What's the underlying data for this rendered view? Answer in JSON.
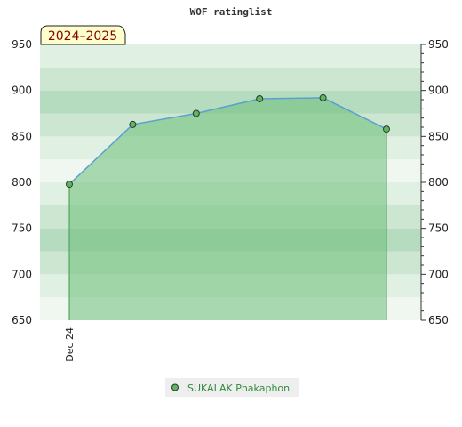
{
  "chart_data": {
    "type": "area",
    "title": "WOF ratinglist",
    "badge": "2024–2025",
    "categories": [
      "Dec 24",
      "",
      "",
      "",
      "",
      ""
    ],
    "series": [
      {
        "name": "SUKALAK Phakaphon",
        "values": [
          798,
          863,
          875,
          891,
          892,
          858
        ]
      }
    ],
    "ylim": [
      650,
      950
    ],
    "yticks": [
      650,
      700,
      750,
      800,
      850,
      900,
      950
    ],
    "y_axis_both_sides": true,
    "legend": "bottom-center",
    "colors": {
      "line": "#5aa0d0",
      "fill": "#6cbf78",
      "marker": "#5cb85c",
      "band_colors": [
        "#f0f7f1",
        "#e0f0e3",
        "#cce6d1",
        "#b5dcbf"
      ],
      "legend_text": "#2e8b3c",
      "badge_bg": "#ffffcc",
      "badge_text": "#8b0000"
    }
  }
}
